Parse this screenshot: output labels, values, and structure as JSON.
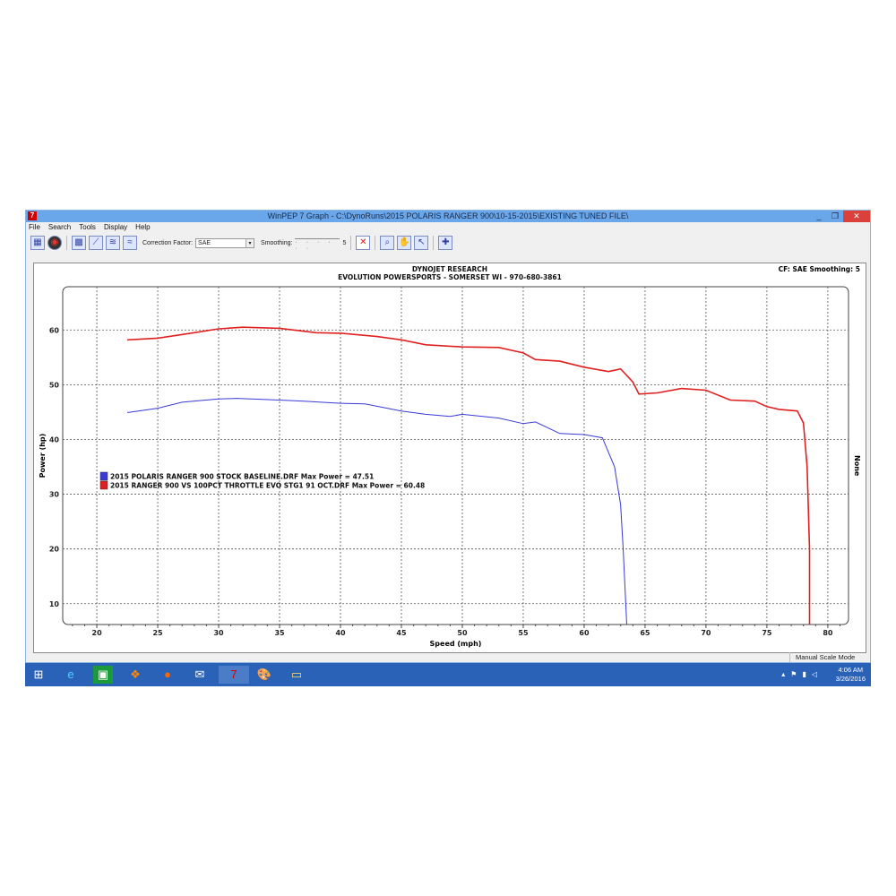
{
  "window": {
    "title": "WinPEP 7     Graph - C:\\DynoRuns\\2015 POLARIS RANGER 900\\10-15-2015\\EXISTING TUNED FILE\\",
    "minimize": "_",
    "maximize": "❐",
    "close": "✕"
  },
  "menu": [
    "File",
    "Search",
    "Tools",
    "Display",
    "Help"
  ],
  "toolbar": {
    "correction_label": "Correction Factor:",
    "correction_value": "SAE",
    "smoothing_label": "Smoothing:",
    "smoothing_value": "5"
  },
  "graph": {
    "header1": "DYNOJET RESEARCH",
    "header2": "EVOLUTION POWERSPORTS - SOMERSET WI - 970-680-3861",
    "cf": "CF: SAE  Smoothing: 5",
    "right_label": "None"
  },
  "status": "Manual Scale Mode",
  "taskbar": {
    "time": "4:06 AM",
    "date": "3/26/2016"
  },
  "chart_data": {
    "type": "line",
    "xlabel": "Speed (mph)",
    "ylabel": "Power (hp)",
    "xlim": [
      17.2,
      81.7
    ],
    "ylim": [
      6.2,
      67.9
    ],
    "xticks": [
      20,
      25,
      30,
      35,
      40,
      45,
      50,
      55,
      60,
      65,
      70,
      75,
      80
    ],
    "yticks": [
      10,
      20,
      30,
      40,
      50,
      60
    ],
    "grid": true,
    "legend_placement": "left-middle",
    "series": [
      {
        "name": "2015 POLARIS RANGER 900 STOCK BASELINE.DRF Max Power = 47.51",
        "color": "#3a3ad8",
        "x": [
          22.5,
          25,
          27,
          30,
          31.5,
          35,
          37,
          40,
          42,
          45,
          47,
          49,
          50,
          53,
          55,
          56,
          58,
          60,
          61.5,
          62.5,
          63,
          63.2,
          63.5
        ],
        "y": [
          44.9,
          45.7,
          46.8,
          47.4,
          47.5,
          47.2,
          47.0,
          46.6,
          46.5,
          45.2,
          44.6,
          44.2,
          44.6,
          43.9,
          42.9,
          43.2,
          41.1,
          40.9,
          40.3,
          35,
          28,
          20,
          6.2
        ]
      },
      {
        "name": "2015 RANGER 900 VS 100PCT THROTTLE EVO STG1 91 OCT.DRF Max Power = 60.48",
        "color": "#e02020",
        "x": [
          22.5,
          25,
          28,
          30,
          32,
          35,
          38,
          40,
          43,
          45,
          47,
          50,
          53,
          55,
          56,
          58,
          60,
          62,
          63,
          64,
          64.5,
          66,
          68,
          70,
          72,
          74,
          75,
          76,
          77.5,
          78,
          78.3,
          78.5,
          78.5
        ],
        "y": [
          58.2,
          58.5,
          59.5,
          60.2,
          60.5,
          60.3,
          59.5,
          59.4,
          58.8,
          58.2,
          57.3,
          56.9,
          56.8,
          55.8,
          54.6,
          54.3,
          53.2,
          52.4,
          52.9,
          50.5,
          48.3,
          48.5,
          49.3,
          49.0,
          47.2,
          47.0,
          46.0,
          45.5,
          45.2,
          43,
          35,
          20,
          6.2
        ]
      }
    ]
  }
}
